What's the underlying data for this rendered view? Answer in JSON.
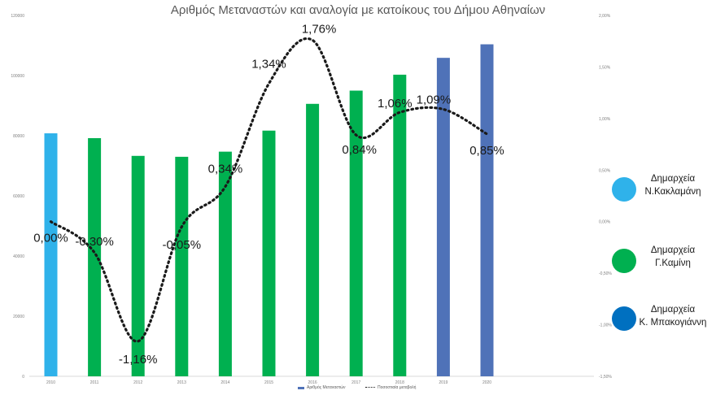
{
  "chart_data": {
    "type": "bar",
    "title": "Αριθμός Μεταναστών και αναλογία με κατοίκους του Δήμου Αθηναίων",
    "categories": [
      "2010",
      "2011",
      "2012",
      "2013",
      "2014",
      "2015",
      "2016",
      "2017",
      "2018",
      "2019",
      "2020"
    ],
    "series": [
      {
        "name": "Αριθμός Μεταναστών",
        "type": "bar",
        "axis": "left",
        "values": [
          80800,
          79200,
          73300,
          73000,
          74700,
          81700,
          90600,
          95000,
          100300,
          105900,
          110400
        ],
        "colors": [
          "#2fb2ea",
          "#00b050",
          "#00b050",
          "#00b050",
          "#00b050",
          "#00b050",
          "#00b050",
          "#00b050",
          "#00b050",
          "#4f72b8",
          "#4f72b8"
        ]
      },
      {
        "name": "Ποσοστιαία μεταβολή",
        "type": "line",
        "style": "dotted",
        "axis": "right",
        "values": [
          0.0,
          -0.3,
          -1.16,
          -0.05,
          0.34,
          1.34,
          1.76,
          0.84,
          1.06,
          1.09,
          0.85
        ],
        "data_labels": [
          "0,00%",
          "-0,30%",
          "-1,16%",
          "-0,05%",
          "0,34%",
          "1,34%",
          "1,76%",
          "0,84%",
          "1,06%",
          "1,09%",
          "0,85%"
        ]
      }
    ],
    "y_left": {
      "ticks": [
        0,
        20000,
        40000,
        60000,
        80000,
        100000,
        120000
      ],
      "tick_labels": [
        "0",
        "20000",
        "40000",
        "60000",
        "80000",
        "100000",
        "120000"
      ],
      "ylim": [
        0,
        120000
      ]
    },
    "y_right": {
      "ticks": [
        -1.5,
        -1.0,
        -0.5,
        0.0,
        0.5,
        1.0,
        1.5,
        2.0
      ],
      "tick_labels": [
        "-1,50%",
        "-1,00%",
        "-0,50%",
        "0,00%",
        "0,50%",
        "1,00%",
        "1,50%",
        "2,00%"
      ],
      "ylim": [
        -1.5,
        2.0
      ]
    },
    "grid": false,
    "legend_position": "bottom",
    "side_legend": [
      {
        "color": "#2fb2ea",
        "line1": "Δημαρχεία",
        "line2": "Ν.Κακλαμάνη"
      },
      {
        "color": "#00b050",
        "line1": "Δημαρχεία",
        "line2": "Γ.Καμίνη"
      },
      {
        "color": "#0070c0",
        "line1": "Δημαρχεία",
        "line2": "Κ. Μπακογιάννη"
      }
    ]
  }
}
